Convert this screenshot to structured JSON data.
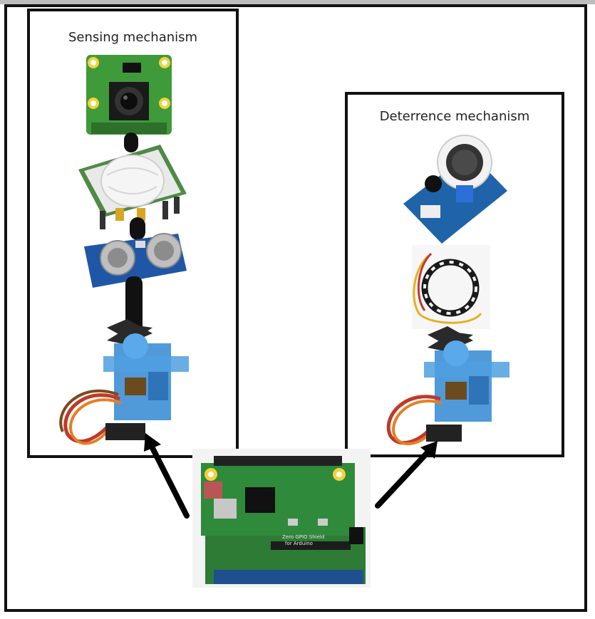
{
  "sensing": {
    "title": "Sensing mechanism"
  },
  "deterrence": {
    "title": "Deterrence mechanism"
  },
  "components": {
    "camera": "raspberry-pi-camera-module",
    "pir": "pir-motion-sensor",
    "ultrasonic": "ultrasonic-distance-sensor",
    "servo_left": "micro-servo-motor",
    "speaker": "speaker-module",
    "led_ring": "rgb-led-ring",
    "servo_right": "micro-servo-motor",
    "controller": "raspberry-pi-zero-arduino-shield"
  },
  "board": {
    "silk_line1": "Zero GPIO Shield",
    "silk_line2": "for Arduino"
  },
  "colors": {
    "pcb_green": "#2f7d3a",
    "servo_blue": "#3d8fd6",
    "sensor_blue": "#1f57a6",
    "frame": "#111111"
  }
}
